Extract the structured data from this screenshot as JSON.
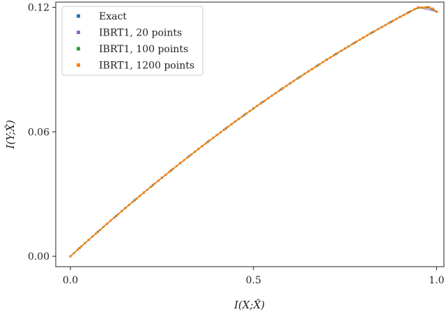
{
  "chart_data": {
    "type": "scatter",
    "title": "",
    "xlabel": "I(X;X̂)",
    "ylabel": "I(Y;X̂)",
    "xlim": [
      -0.04,
      1.02
    ],
    "ylim": [
      -0.005,
      0.1225
    ],
    "xticks": [
      {
        "value": 0.0,
        "label": "0.0"
      },
      {
        "value": 0.5,
        "label": "0.5"
      },
      {
        "value": 1.0,
        "label": "1.0"
      }
    ],
    "yticks": [
      {
        "value": 0.0,
        "label": "0.00"
      },
      {
        "value": 0.06,
        "label": "0.06"
      },
      {
        "value": 0.12,
        "label": "0.12"
      }
    ],
    "grid": false,
    "legend_position": "top-left",
    "series": [
      {
        "name": "Exact",
        "color": "#1f77b4",
        "x": [
          0.0,
          0.025,
          0.05,
          0.075,
          0.1,
          0.125,
          0.15,
          0.175,
          0.2,
          0.225,
          0.25,
          0.275,
          0.3,
          0.325,
          0.35,
          0.375,
          0.4,
          0.425,
          0.45,
          0.475,
          0.5,
          0.525,
          0.55,
          0.575,
          0.6,
          0.625,
          0.65,
          0.675,
          0.7,
          0.725,
          0.75,
          0.775,
          0.8,
          0.825,
          0.85,
          0.875,
          0.9,
          0.925,
          0.95,
          0.975,
          1.0
        ],
        "y": [
          0.0,
          0.00398,
          0.00791,
          0.0118,
          0.01565,
          0.01946,
          0.02323,
          0.02695,
          0.03062,
          0.03425,
          0.03784,
          0.04138,
          0.04488,
          0.04833,
          0.05174,
          0.0551,
          0.05842,
          0.06169,
          0.06492,
          0.0681,
          0.07124,
          0.07433,
          0.07738,
          0.08038,
          0.08334,
          0.08625,
          0.08912,
          0.09194,
          0.09472,
          0.09745,
          0.10014,
          0.10278,
          0.10538,
          0.10793,
          0.11044,
          0.1129,
          0.11532,
          0.11769,
          0.11993,
          0.11996,
          0.1179
        ]
      },
      {
        "name": "IBRT1, 20 points",
        "color": "#9467bd",
        "x": [
          0.0,
          0.05,
          0.1,
          0.15,
          0.2,
          0.25,
          0.3,
          0.35,
          0.4,
          0.45,
          0.5,
          0.55,
          0.6,
          0.65,
          0.7,
          0.75,
          0.8,
          0.85,
          0.9,
          0.95,
          1.0
        ],
        "y": [
          0.0,
          0.00791,
          0.01565,
          0.02323,
          0.03062,
          0.03784,
          0.04488,
          0.05174,
          0.05842,
          0.06492,
          0.07124,
          0.07738,
          0.08334,
          0.08912,
          0.09472,
          0.10014,
          0.10538,
          0.11044,
          0.11532,
          0.11993,
          0.1179
        ]
      },
      {
        "name": "IBRT1, 100 points",
        "color": "#2ca02c",
        "x": [
          0.0,
          0.02,
          0.04,
          0.06,
          0.08,
          0.1,
          0.12,
          0.14,
          0.16,
          0.18,
          0.2,
          0.22,
          0.24,
          0.26,
          0.28,
          0.3,
          0.32,
          0.34,
          0.36,
          0.38,
          0.4,
          0.42,
          0.44,
          0.46,
          0.48,
          0.5,
          0.52,
          0.54,
          0.56,
          0.58,
          0.6,
          0.62,
          0.64,
          0.66,
          0.68,
          0.7,
          0.72,
          0.74,
          0.76,
          0.78,
          0.8,
          0.82,
          0.84,
          0.86,
          0.88,
          0.9,
          0.92,
          0.94,
          0.96,
          0.98,
          1.0
        ],
        "y": [
          0.0,
          0.00319,
          0.00634,
          0.00947,
          0.01258,
          0.01565,
          0.0187,
          0.02172,
          0.02472,
          0.02769,
          0.03062,
          0.03353,
          0.03641,
          0.03927,
          0.04209,
          0.04488,
          0.04764,
          0.05038,
          0.05308,
          0.05576,
          0.05842,
          0.06104,
          0.06363,
          0.06618,
          0.06872,
          0.07124,
          0.07372,
          0.07616,
          0.07858,
          0.08097,
          0.08334,
          0.08567,
          0.08797,
          0.09025,
          0.09249,
          0.09472,
          0.0969,
          0.09906,
          0.10119,
          0.10329,
          0.10538,
          0.10743,
          0.10944,
          0.11143,
          0.11338,
          0.11532,
          0.11721,
          0.11908,
          0.11985,
          0.11994,
          0.1179
        ]
      },
      {
        "name": "IBRT1, 1200 points",
        "color": "#ff7f0e",
        "x": [
          0.0,
          0.01,
          0.02,
          0.03,
          0.04,
          0.05,
          0.06,
          0.07,
          0.08,
          0.09,
          0.1,
          0.11,
          0.12,
          0.13,
          0.14,
          0.15,
          0.16,
          0.17,
          0.18,
          0.19,
          0.2,
          0.21,
          0.22,
          0.23,
          0.24,
          0.25,
          0.26,
          0.27,
          0.28,
          0.29,
          0.3,
          0.31,
          0.32,
          0.33,
          0.34,
          0.35,
          0.36,
          0.37,
          0.38,
          0.39,
          0.4,
          0.41,
          0.42,
          0.43,
          0.44,
          0.45,
          0.46,
          0.47,
          0.48,
          0.49,
          0.5,
          0.51,
          0.52,
          0.53,
          0.54,
          0.55,
          0.56,
          0.57,
          0.58,
          0.59,
          0.6,
          0.61,
          0.62,
          0.63,
          0.64,
          0.65,
          0.66,
          0.67,
          0.68,
          0.69,
          0.7,
          0.71,
          0.72,
          0.73,
          0.74,
          0.75,
          0.76,
          0.77,
          0.78,
          0.79,
          0.8,
          0.81,
          0.82,
          0.83,
          0.84,
          0.85,
          0.86,
          0.87,
          0.88,
          0.89,
          0.9,
          0.91,
          0.92,
          0.93,
          0.94,
          0.95,
          0.96,
          0.97,
          0.98,
          0.99,
          1.0
        ],
        "y": [
          0.0,
          0.0016,
          0.00319,
          0.00477,
          0.00634,
          0.00791,
          0.00947,
          0.01103,
          0.01258,
          0.01412,
          0.01565,
          0.01718,
          0.0187,
          0.02021,
          0.02172,
          0.02323,
          0.02472,
          0.0262,
          0.02769,
          0.02916,
          0.03062,
          0.03208,
          0.03353,
          0.03497,
          0.03641,
          0.03784,
          0.03927,
          0.04068,
          0.04209,
          0.04349,
          0.04488,
          0.04627,
          0.04764,
          0.04901,
          0.05038,
          0.05174,
          0.05308,
          0.05442,
          0.05576,
          0.05709,
          0.05842,
          0.05973,
          0.06104,
          0.06234,
          0.06363,
          0.06492,
          0.06618,
          0.06745,
          0.06872,
          0.06998,
          0.07124,
          0.07248,
          0.07372,
          0.07494,
          0.07616,
          0.07738,
          0.07858,
          0.07978,
          0.08097,
          0.08216,
          0.08334,
          0.0845,
          0.08567,
          0.08682,
          0.08797,
          0.08912,
          0.09025,
          0.09137,
          0.09249,
          0.09361,
          0.09472,
          0.09581,
          0.0969,
          0.09798,
          0.09906,
          0.10014,
          0.10119,
          0.10224,
          0.10329,
          0.10434,
          0.10538,
          0.1064,
          0.10743,
          0.10843,
          0.10944,
          0.11044,
          0.11143,
          0.1124,
          0.11338,
          0.11435,
          0.11532,
          0.11626,
          0.11721,
          0.11814,
          0.11908,
          0.11993,
          0.11985,
          0.11992,
          0.11994,
          0.11935,
          0.1179
        ]
      }
    ]
  }
}
